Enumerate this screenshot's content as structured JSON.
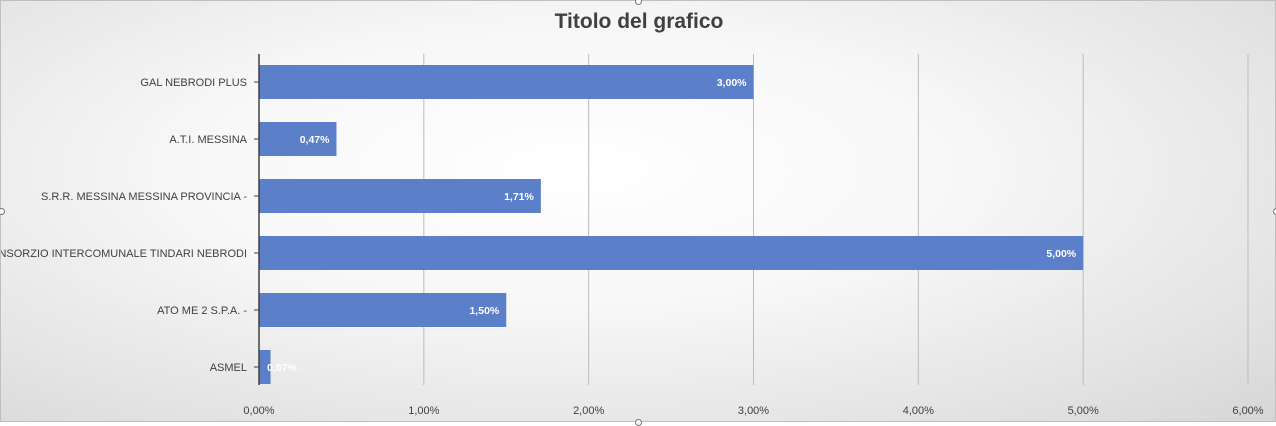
{
  "chart_data": {
    "type": "bar",
    "orientation": "horizontal",
    "title": "Titolo del grafico",
    "categories": [
      "GAL  NEBRODI PLUS",
      "A.T.I. MESSINA",
      "S.R.R. MESSINA MESSINA PROVINCIA -",
      "CONSORZIO INTERCOMUNALE TINDARI NEBRODI",
      "ATO ME 2 S.P.A. -",
      "ASMEL"
    ],
    "values": [
      3.0,
      0.47,
      1.71,
      5.0,
      1.5,
      0.07
    ],
    "data_labels": [
      "3,00%",
      "0,47%",
      "1,71%",
      "5,00%",
      "1,50%",
      "0,07%"
    ],
    "xlim": [
      0,
      6
    ],
    "x_ticks": [
      0,
      1,
      2,
      3,
      4,
      5,
      6
    ],
    "x_tick_labels": [
      "0,00%",
      "1,00%",
      "2,00%",
      "3,00%",
      "4,00%",
      "5,00%",
      "6,00%"
    ],
    "grid": true,
    "legend": "none",
    "colors": {
      "bar": "#5b7fc9",
      "grid": "#bcbcbc",
      "axis": "#404040"
    }
  }
}
